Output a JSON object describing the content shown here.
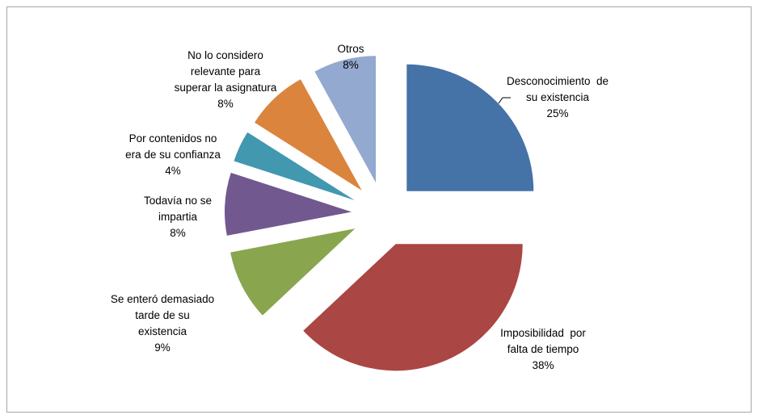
{
  "chart_data": {
    "type": "pie",
    "categories": [
      "Desconocimiento  de\nsu existencia",
      "Imposibilidad  por\nfalta de tiempo",
      "Se enteró demasiado\ntarde de su\nexistencia",
      "Todavía no se\nimpartia",
      "Por contenidos no\nera de su confianza",
      "No lo considero\nrelevante para\nsuperar la asignatura",
      "Otros"
    ],
    "values": [
      25,
      38,
      9,
      8,
      4,
      8,
      8
    ],
    "value_labels": [
      "25%",
      "38%",
      "9%",
      "8%",
      "4%",
      "8%",
      "8%"
    ],
    "colors": [
      "#4572a7",
      "#aa4643",
      "#89a54e",
      "#71588f",
      "#4198af",
      "#db843d",
      "#93a9cf"
    ]
  }
}
